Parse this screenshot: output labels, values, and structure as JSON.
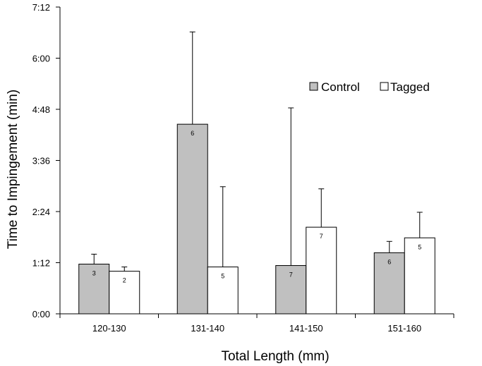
{
  "chart_data": {
    "type": "bar",
    "title": "",
    "xlabel": "Total Length (mm)",
    "ylabel": "Time to Impingement (min)",
    "ylim_minutes": [
      0,
      432
    ],
    "y_tick_labels": [
      "0:00",
      "1:12",
      "2:24",
      "3:36",
      "4:48",
      "6:00",
      "7:12"
    ],
    "y_tick_values_minutes": [
      0,
      72,
      144,
      216,
      288,
      360,
      432
    ],
    "categories": [
      "120-130",
      "131-140",
      "141-150",
      "151-160"
    ],
    "series": [
      {
        "name": "Control",
        "color": "#c0c0c0",
        "values_minutes": [
          70,
          267,
          68,
          86
        ],
        "error_upper_minutes": [
          84,
          397,
          290,
          102
        ],
        "n_labels": [
          "3",
          "6",
          "7",
          "6"
        ]
      },
      {
        "name": "Tagged",
        "color": "#ffffff",
        "values_minutes": [
          60,
          66,
          122,
          107
        ],
        "error_upper_minutes": [
          66,
          179,
          176,
          143
        ],
        "n_labels": [
          "2",
          "5",
          "7",
          "5"
        ]
      }
    ],
    "legend": [
      "Control",
      "Tagged"
    ],
    "legend_position": "top-right",
    "grid": false
  }
}
